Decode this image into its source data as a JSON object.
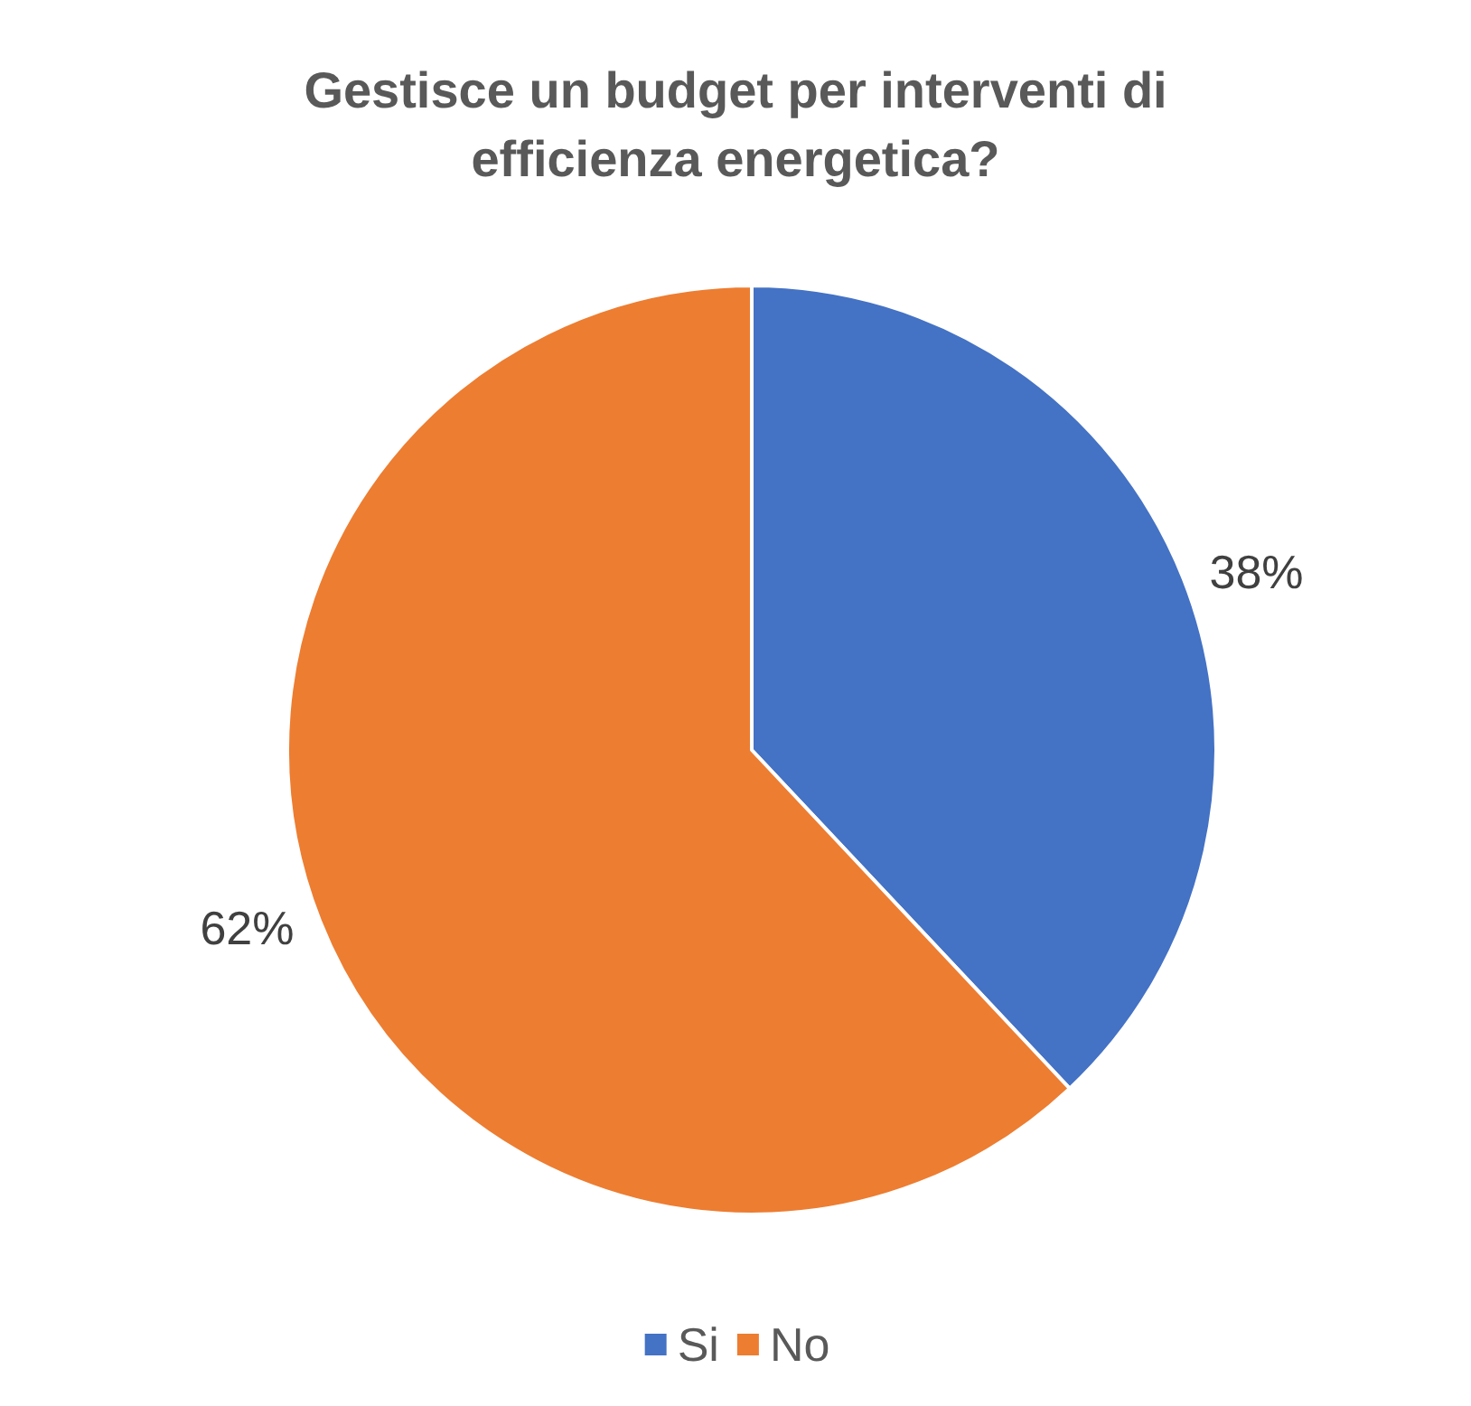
{
  "chart_data": {
    "type": "pie",
    "title": "Gestisce un budget per interventi di\nefficienza energetica?",
    "categories": [
      "Si",
      "No"
    ],
    "values": [
      38,
      62
    ],
    "colors": [
      "#4472c4",
      "#ed7d31"
    ],
    "value_labels": [
      "38%",
      "62%"
    ],
    "legend": "bottom"
  }
}
